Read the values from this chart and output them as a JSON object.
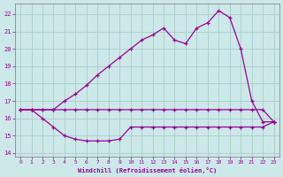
{
  "xlabel": "Windchill (Refroidissement éolien,°C)",
  "bg_color": "#cce8e8",
  "grid_color": "#aacccc",
  "line_color": "#990099",
  "xlim": [
    -0.5,
    23.5
  ],
  "ylim": [
    13.8,
    22.6
  ],
  "xticks": [
    0,
    1,
    2,
    3,
    4,
    5,
    6,
    7,
    8,
    9,
    10,
    11,
    12,
    13,
    14,
    15,
    16,
    17,
    18,
    19,
    20,
    21,
    22,
    23
  ],
  "yticks": [
    14,
    15,
    16,
    17,
    18,
    19,
    20,
    21,
    22
  ],
  "c1_x": [
    0,
    1,
    2,
    3,
    4,
    5,
    6,
    7,
    8,
    9,
    10,
    11,
    12,
    13,
    14,
    15,
    16,
    17,
    18,
    19,
    20,
    21,
    22,
    23
  ],
  "c1_y": [
    16.5,
    16.5,
    16.5,
    16.5,
    16.5,
    16.5,
    16.5,
    16.5,
    16.5,
    16.5,
    16.5,
    16.5,
    16.5,
    16.5,
    16.5,
    16.5,
    16.5,
    16.5,
    16.5,
    16.5,
    16.5,
    16.5,
    16.5,
    15.8
  ],
  "c2_x": [
    0,
    1,
    2,
    3,
    4,
    5,
    6,
    7,
    8,
    9,
    10,
    11,
    12,
    13,
    14,
    15,
    16,
    17,
    18,
    19,
    20,
    21,
    22,
    23
  ],
  "c2_y": [
    16.5,
    16.5,
    16.5,
    16.5,
    17.0,
    17.4,
    17.9,
    18.5,
    19.0,
    19.5,
    20.0,
    20.5,
    20.8,
    21.2,
    20.5,
    20.3,
    21.2,
    21.5,
    22.2,
    21.8,
    20.0,
    17.0,
    15.8,
    15.8
  ],
  "c3_x": [
    0,
    1,
    2,
    3,
    4,
    5,
    6,
    7,
    8,
    9,
    10,
    11,
    12,
    13,
    14,
    15,
    16,
    17,
    18,
    19,
    20,
    21,
    22,
    23
  ],
  "c3_y": [
    16.5,
    16.5,
    16.0,
    15.5,
    15.0,
    14.8,
    14.7,
    14.7,
    14.7,
    14.8,
    15.5,
    15.5,
    15.5,
    15.5,
    15.5,
    15.5,
    15.5,
    15.5,
    15.5,
    15.5,
    15.5,
    15.5,
    15.5,
    15.8
  ]
}
